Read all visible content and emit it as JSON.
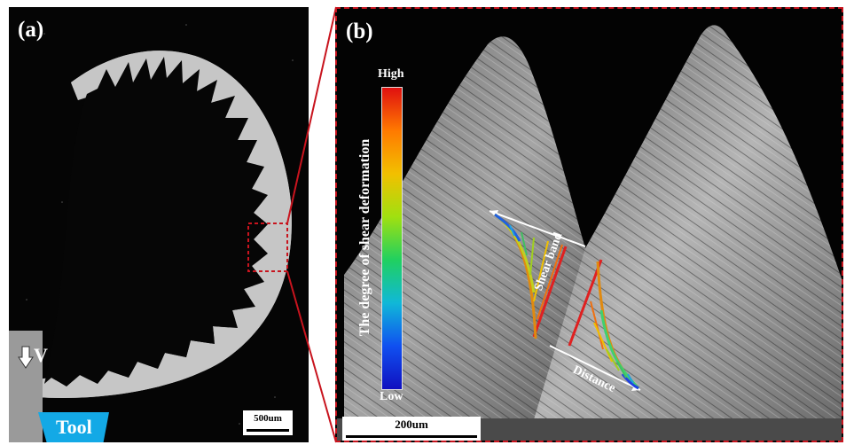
{
  "panel_a": {
    "label": "(a)",
    "scale_bar": "500um",
    "tool_label": "Tool",
    "velocity_label": "V"
  },
  "panel_b": {
    "label": "(b)",
    "scale_bar": "200um",
    "colorbar": {
      "title": "The degree of shear deformation",
      "high": "High",
      "low": "Low"
    },
    "shear_band_label": "Shear band",
    "distance_label": "Distance"
  },
  "colors": {
    "zoom_frame": "#c8141e",
    "tool": "#13a9e6"
  }
}
